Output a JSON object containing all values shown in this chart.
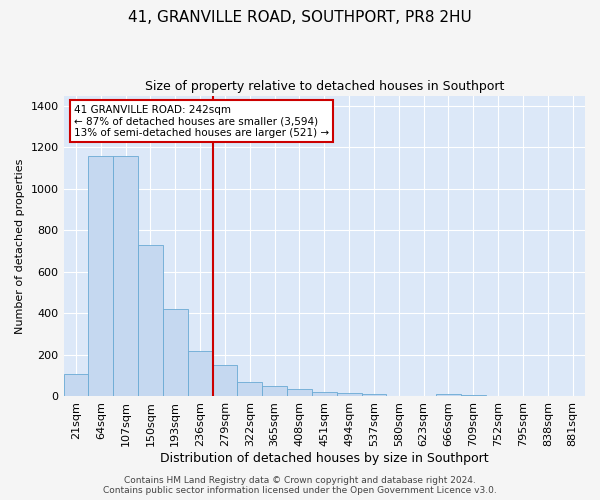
{
  "title": "41, GRANVILLE ROAD, SOUTHPORT, PR8 2HU",
  "subtitle": "Size of property relative to detached houses in Southport",
  "xlabel": "Distribution of detached houses by size in Southport",
  "ylabel": "Number of detached properties",
  "bar_labels": [
    "21sqm",
    "64sqm",
    "107sqm",
    "150sqm",
    "193sqm",
    "236sqm",
    "279sqm",
    "322sqm",
    "365sqm",
    "408sqm",
    "451sqm",
    "494sqm",
    "537sqm",
    "580sqm",
    "623sqm",
    "666sqm",
    "709sqm",
    "752sqm",
    "795sqm",
    "838sqm",
    "881sqm"
  ],
  "bar_values": [
    107,
    1160,
    1160,
    730,
    420,
    220,
    150,
    72,
    50,
    35,
    20,
    15,
    14,
    0,
    0,
    12,
    8,
    0,
    0,
    0,
    0
  ],
  "bar_color": "#c5d8f0",
  "bar_edge_color": "#6aaad4",
  "annotation_line1": "41 GRANVILLE ROAD: 242sqm",
  "annotation_line2": "← 87% of detached houses are smaller (3,594)",
  "annotation_line3": "13% of semi-detached houses are larger (521) →",
  "vline_x_index": 5.5,
  "ylim": [
    0,
    1450
  ],
  "yticks": [
    0,
    200,
    400,
    600,
    800,
    1000,
    1200,
    1400
  ],
  "fig_background_color": "#f5f5f5",
  "plot_bg_color": "#dce8f8",
  "grid_color": "#ffffff",
  "annotation_box_color": "white",
  "annotation_box_edge": "#cc0000",
  "vline_color": "#cc0000",
  "footer": "Contains HM Land Registry data © Crown copyright and database right 2024.\nContains public sector information licensed under the Open Government Licence v3.0.",
  "title_fontsize": 11,
  "subtitle_fontsize": 9,
  "ylabel_fontsize": 8,
  "xlabel_fontsize": 9,
  "tick_fontsize": 8,
  "footer_fontsize": 6.5
}
